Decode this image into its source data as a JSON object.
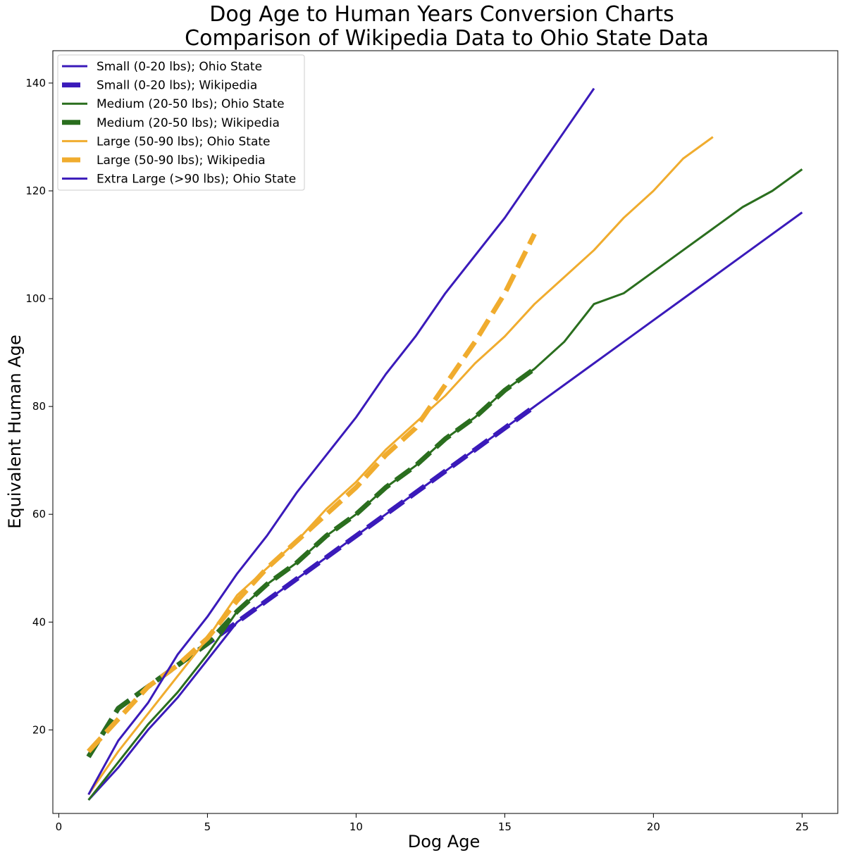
{
  "chart_data": {
    "type": "line",
    "title": [
      "Dog Age to Human Years Conversion Charts",
      "Comparison of Wikipedia Data to Ohio State Data"
    ],
    "xlabel": "Dog Age",
    "ylabel": "Equivalent Human Age",
    "xlim": [
      -0.2,
      26.2
    ],
    "ylim": [
      4.5,
      146
    ],
    "xticks": [
      0,
      5,
      10,
      15,
      20,
      25
    ],
    "yticks": [
      20,
      40,
      60,
      80,
      100,
      120,
      140
    ],
    "grid": false,
    "legend_position": "top-left",
    "series": [
      {
        "name": "Small (0-20 lbs); Ohio State",
        "color": "#3a1aba",
        "style": "solid",
        "x": [
          1,
          2,
          3,
          4,
          5,
          6,
          7,
          8,
          9,
          10,
          11,
          12,
          13,
          14,
          15,
          16,
          17,
          18,
          19,
          20,
          21,
          22,
          23,
          24,
          25
        ],
        "y": [
          7,
          13,
          20,
          26,
          33,
          40,
          44,
          48,
          52,
          56,
          60,
          64,
          68,
          72,
          76,
          80,
          84,
          88,
          92,
          96,
          100,
          104,
          108,
          112,
          116
        ]
      },
      {
        "name": "Small (0-20 lbs); Wikipedia",
        "color": "#3a1aba",
        "style": "dashed",
        "x": [
          1,
          2,
          3,
          4,
          5,
          6,
          7,
          8,
          9,
          10,
          11,
          12,
          13,
          14,
          15,
          16
        ],
        "y": [
          15,
          24,
          28,
          32,
          36,
          40,
          44,
          48,
          52,
          56,
          60,
          64,
          68,
          72,
          76,
          80
        ]
      },
      {
        "name": "Medium (20-50 lbs); Ohio State",
        "color": "#2a6e1e",
        "style": "solid",
        "x": [
          1,
          2,
          3,
          4,
          5,
          6,
          7,
          8,
          9,
          10,
          11,
          12,
          13,
          14,
          15,
          16,
          17,
          18,
          19,
          20,
          21,
          22,
          23,
          24,
          25
        ],
        "y": [
          7,
          14,
          21,
          27,
          34,
          42,
          47,
          51,
          56,
          60,
          65,
          69,
          74,
          78,
          83,
          87,
          92,
          99,
          101,
          105,
          109,
          113,
          117,
          120,
          124
        ]
      },
      {
        "name": "Medium (20-50 lbs); Wikipedia",
        "color": "#2a6e1e",
        "style": "dashed",
        "x": [
          1,
          2,
          3,
          4,
          5,
          6,
          7,
          8,
          9,
          10,
          11,
          12,
          13,
          14,
          15,
          16
        ],
        "y": [
          15,
          24,
          28,
          32,
          36,
          42,
          47,
          51,
          56,
          60,
          65,
          69,
          74,
          78,
          83,
          87
        ]
      },
      {
        "name": "Large (50-90 lbs); Ohio State",
        "color": "#f0ac2e",
        "style": "solid",
        "x": [
          1,
          2,
          3,
          4,
          5,
          6,
          7,
          8,
          9,
          10,
          11,
          12,
          13,
          14,
          15,
          16,
          17,
          18,
          19,
          20,
          21,
          22
        ],
        "y": [
          8,
          16,
          23,
          30,
          37,
          45,
          50,
          55,
          61,
          66,
          72,
          77,
          82,
          88,
          93,
          99,
          104,
          109,
          115,
          120,
          126,
          130
        ]
      },
      {
        "name": "Large (50-90 lbs); Wikipedia",
        "color": "#f0ac2e",
        "style": "dashed",
        "x": [
          1,
          2,
          3,
          4,
          5,
          6,
          7,
          8,
          9,
          10,
          11,
          12,
          13,
          14,
          15,
          16
        ],
        "y": [
          16,
          22,
          28,
          32,
          37,
          44,
          50,
          55,
          60,
          65,
          71,
          76,
          84,
          92,
          101,
          112
        ]
      },
      {
        "name": "Extra Large (>90 lbs); Ohio State",
        "color": "#3a1aba",
        "style": "solid",
        "x": [
          1,
          2,
          3,
          4,
          5,
          6,
          7,
          8,
          9,
          10,
          11,
          12,
          13,
          14,
          15,
          16,
          17,
          18
        ],
        "y": [
          8,
          18,
          25,
          34,
          41,
          49,
          56,
          64,
          71,
          78,
          86,
          93,
          101,
          108,
          115,
          123,
          131,
          139
        ]
      }
    ]
  }
}
